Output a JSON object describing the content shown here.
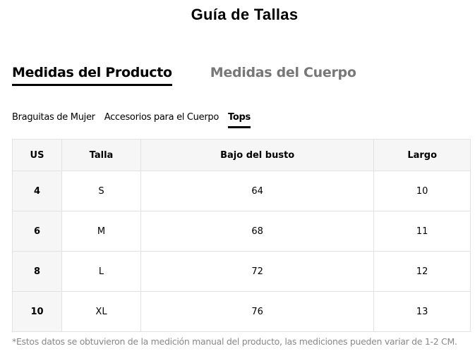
{
  "title": "Guía de Tallas",
  "tabs": [
    {
      "label": "Medidas del Producto",
      "active": true
    },
    {
      "label": "Medidas del Cuerpo",
      "active": false
    }
  ],
  "subtabs": [
    {
      "label": "Braguitas de Mujer"
    },
    {
      "label": "Accesorios para el Cuerpo"
    },
    {
      "label": "Tops",
      "active": true
    }
  ],
  "table": {
    "headers": [
      "US",
      "Talla",
      "Bajo del busto",
      "Largo"
    ],
    "rows": [
      [
        "4",
        "S",
        "64",
        "10"
      ],
      [
        "6",
        "M",
        "68",
        "11"
      ],
      [
        "8",
        "L",
        "72",
        "12"
      ],
      [
        "10",
        "XL",
        "76",
        "13"
      ]
    ]
  },
  "note": "*Estos datos se obtuvieron de la medición manual del producto, las mediciones pueden variar de 1-2 CM."
}
